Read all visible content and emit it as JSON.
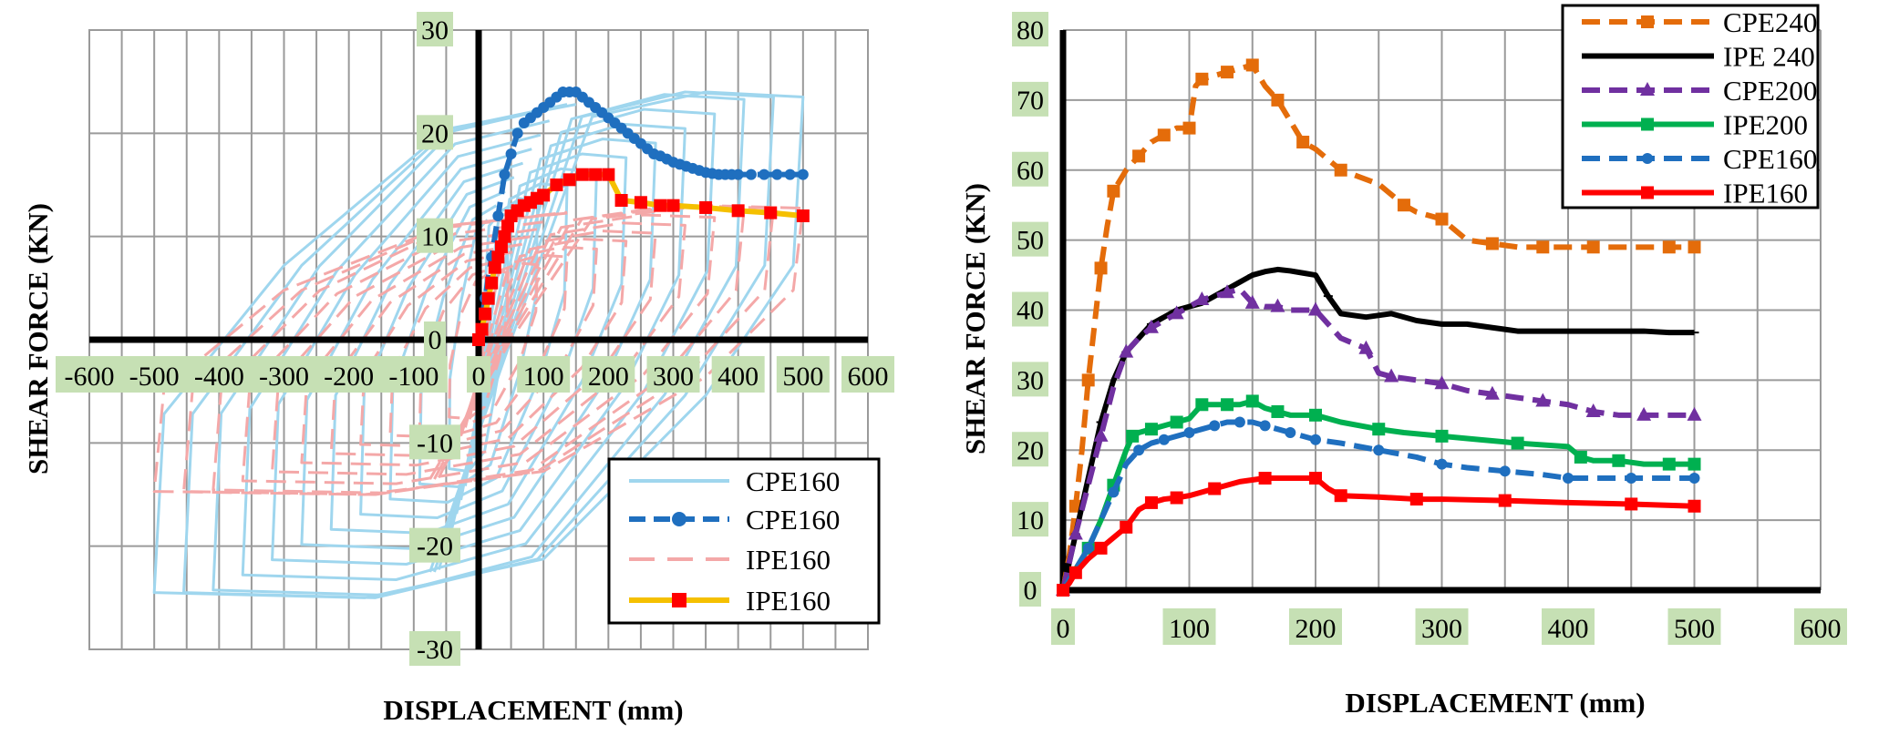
{
  "chart_data": [
    {
      "type": "line",
      "xlabel": "DISPLACEMENT (mm)",
      "ylabel": "SHEAR FORCE (KN)",
      "xlim": [
        -600,
        600
      ],
      "ylim": [
        -30,
        30
      ],
      "x_ticks": [
        "-600",
        "-500",
        "-400",
        "-300",
        "-200",
        "-100",
        "0",
        "100",
        "200",
        "300",
        "400",
        "500",
        "600"
      ],
      "y_ticks": [
        "30",
        "20",
        "10",
        "0",
        "-10",
        "-20",
        "-30"
      ],
      "grid": true,
      "legend_position": "bottom-right",
      "series": [
        {
          "name": "CPE160",
          "style": "hysteresis",
          "color": "#9fd6ee",
          "amp_max": 500,
          "f_pos": 24,
          "f_neg": -25,
          "residual": 18
        },
        {
          "name": "CPE160",
          "style": "envelope",
          "color": "#1f6fbf",
          "x": [
            0,
            10,
            20,
            30,
            40,
            50,
            60,
            70,
            80,
            90,
            100,
            110,
            120,
            130,
            140,
            150,
            160,
            170,
            180,
            190,
            200,
            210,
            220,
            230,
            240,
            250,
            260,
            270,
            280,
            290,
            300,
            310,
            320,
            330,
            340,
            350,
            360,
            370,
            380,
            390,
            400,
            420,
            440,
            460,
            480,
            500
          ],
          "y": [
            0,
            4,
            8,
            12,
            16,
            18,
            20,
            21,
            21.5,
            22,
            22.5,
            23,
            23.5,
            24,
            24,
            24,
            23.5,
            23,
            22.5,
            22,
            21.5,
            21,
            20.5,
            20,
            19.5,
            19,
            18.5,
            18,
            17.8,
            17.5,
            17.2,
            17,
            16.8,
            16.6,
            16.4,
            16.2,
            16.1,
            16,
            16,
            16,
            16,
            16,
            16,
            16,
            16,
            16
          ]
        },
        {
          "name": "IPE160",
          "style": "hysteresis",
          "color": "#f4a8a8",
          "amp_max": 500,
          "f_pos": 13,
          "f_neg": -15,
          "residual": 12
        },
        {
          "name": "IPE160",
          "style": "envelope",
          "color": "#f5c000",
          "x": [
            0,
            5,
            10,
            15,
            20,
            25,
            30,
            35,
            40,
            45,
            50,
            60,
            70,
            80,
            90,
            100,
            120,
            140,
            160,
            180,
            200,
            220,
            250,
            280,
            300,
            350,
            400,
            450,
            500
          ],
          "y": [
            0,
            1,
            2.5,
            4,
            5.5,
            7,
            8,
            9,
            10,
            11,
            12,
            12.5,
            13,
            13.3,
            13.7,
            14,
            15,
            15.5,
            16,
            16,
            16,
            13.5,
            13.3,
            13,
            13,
            12.8,
            12.5,
            12.3,
            12
          ]
        }
      ]
    },
    {
      "type": "line",
      "xlabel": "DISPLACEMENT (mm)",
      "ylabel": "SHEAR FORCE (KN)",
      "xlim": [
        0,
        600
      ],
      "ylim": [
        0,
        80
      ],
      "x_ticks": [
        "0",
        "100",
        "200",
        "300",
        "400",
        "500",
        "600"
      ],
      "y_ticks": [
        "80",
        "70",
        "60",
        "50",
        "40",
        "30",
        "20",
        "10",
        "0"
      ],
      "grid": true,
      "legend_position": "top-right",
      "series": [
        {
          "name": "CPE240",
          "color": "#e46c0a",
          "dash": "dashed",
          "marker": "square",
          "x": [
            0,
            5,
            10,
            15,
            20,
            25,
            30,
            35,
            40,
            50,
            60,
            70,
            80,
            90,
            100,
            105,
            110,
            120,
            130,
            140,
            150,
            160,
            170,
            180,
            190,
            200,
            220,
            250,
            270,
            280,
            300,
            320,
            340,
            360,
            380,
            400,
            420,
            450,
            480,
            500
          ],
          "y": [
            0,
            5,
            12,
            20,
            30,
            38,
            46,
            52,
            57,
            60,
            62,
            64,
            65,
            66,
            66,
            72,
            73,
            73.5,
            74,
            74.5,
            75,
            72,
            70,
            67,
            64,
            63,
            60,
            58,
            55,
            54,
            53,
            50,
            49.5,
            49,
            49,
            49,
            49,
            49,
            49,
            49
          ]
        },
        {
          "name": "IPE 240",
          "color": "#000000",
          "dash": "solid",
          "marker": "plus",
          "x": [
            0,
            5,
            10,
            20,
            30,
            40,
            50,
            60,
            70,
            80,
            90,
            100,
            110,
            120,
            130,
            140,
            150,
            160,
            170,
            180,
            190,
            200,
            210,
            220,
            240,
            260,
            280,
            300,
            320,
            340,
            360,
            380,
            400,
            420,
            440,
            460,
            480,
            500
          ],
          "y": [
            0,
            4,
            8,
            16,
            24,
            30,
            34,
            36,
            38,
            39,
            40,
            40.5,
            41,
            42,
            43,
            44,
            45,
            45.5,
            45.8,
            45.6,
            45.3,
            45,
            42,
            39.5,
            39,
            39.5,
            38.5,
            38,
            38,
            37.5,
            37,
            37,
            37,
            37,
            37,
            37,
            36.8,
            36.8
          ]
        },
        {
          "name": "CPE200",
          "color": "#7030a0",
          "dash": "dashed",
          "marker": "triangle",
          "x": [
            0,
            5,
            10,
            20,
            30,
            40,
            50,
            60,
            70,
            80,
            90,
            100,
            110,
            120,
            130,
            140,
            150,
            160,
            170,
            180,
            200,
            220,
            240,
            250,
            260,
            280,
            300,
            320,
            340,
            360,
            380,
            400,
            420,
            440,
            460,
            480,
            500
          ],
          "y": [
            0,
            4,
            8,
            15,
            22,
            29,
            34,
            36,
            37.5,
            38.5,
            39.5,
            40.5,
            41.5,
            42,
            42.5,
            43,
            41,
            40.5,
            40.5,
            40,
            40,
            36,
            34.5,
            31,
            30.5,
            30,
            29.5,
            28.5,
            28,
            27.5,
            27,
            26.5,
            25.5,
            25,
            25,
            25,
            25
          ]
        },
        {
          "name": "IPE200",
          "color": "#00b050",
          "dash": "solid",
          "marker": "square",
          "x": [
            0,
            10,
            20,
            30,
            40,
            50,
            55,
            60,
            70,
            80,
            90,
            100,
            110,
            120,
            130,
            140,
            150,
            160,
            170,
            180,
            200,
            220,
            250,
            270,
            300,
            330,
            360,
            400,
            410,
            420,
            440,
            460,
            480,
            500
          ],
          "y": [
            0,
            3,
            6,
            10,
            15,
            20,
            22,
            22.5,
            23,
            23.5,
            24,
            24.5,
            26.5,
            26.5,
            26.5,
            26.5,
            27,
            26,
            25.5,
            25,
            25,
            24,
            23,
            22.5,
            22,
            21.5,
            21,
            20.5,
            19,
            18.5,
            18.5,
            18,
            18,
            18
          ]
        },
        {
          "name": "CPE160",
          "color": "#1f6fbf",
          "dash": "dashed",
          "marker": "circle",
          "x": [
            0,
            10,
            20,
            30,
            40,
            50,
            60,
            70,
            80,
            90,
            100,
            110,
            120,
            130,
            140,
            150,
            160,
            170,
            180,
            190,
            200,
            220,
            250,
            280,
            300,
            320,
            350,
            380,
            400,
            420,
            450,
            480,
            500
          ],
          "y": [
            0,
            3,
            6,
            10,
            14,
            18,
            20,
            21,
            21.5,
            22,
            22.5,
            23,
            23.5,
            24,
            24,
            24,
            23.5,
            23,
            22.5,
            22,
            21.5,
            21,
            20,
            19,
            18,
            17.5,
            17,
            16.5,
            16,
            16,
            16,
            16,
            16
          ]
        },
        {
          "name": "IPE160",
          "color": "#ff0000",
          "dash": "solid",
          "marker": "square",
          "x": [
            0,
            5,
            10,
            20,
            30,
            40,
            50,
            60,
            70,
            80,
            90,
            100,
            120,
            140,
            160,
            180,
            200,
            210,
            220,
            250,
            280,
            300,
            350,
            400,
            450,
            500
          ],
          "y": [
            0,
            1,
            2.5,
            4.5,
            6,
            7.5,
            9,
            11.5,
            12.5,
            13,
            13.2,
            13.5,
            14.5,
            15.5,
            16,
            16,
            16,
            14.5,
            13.5,
            13.3,
            13,
            13,
            12.8,
            12.5,
            12.3,
            12
          ]
        }
      ]
    }
  ]
}
